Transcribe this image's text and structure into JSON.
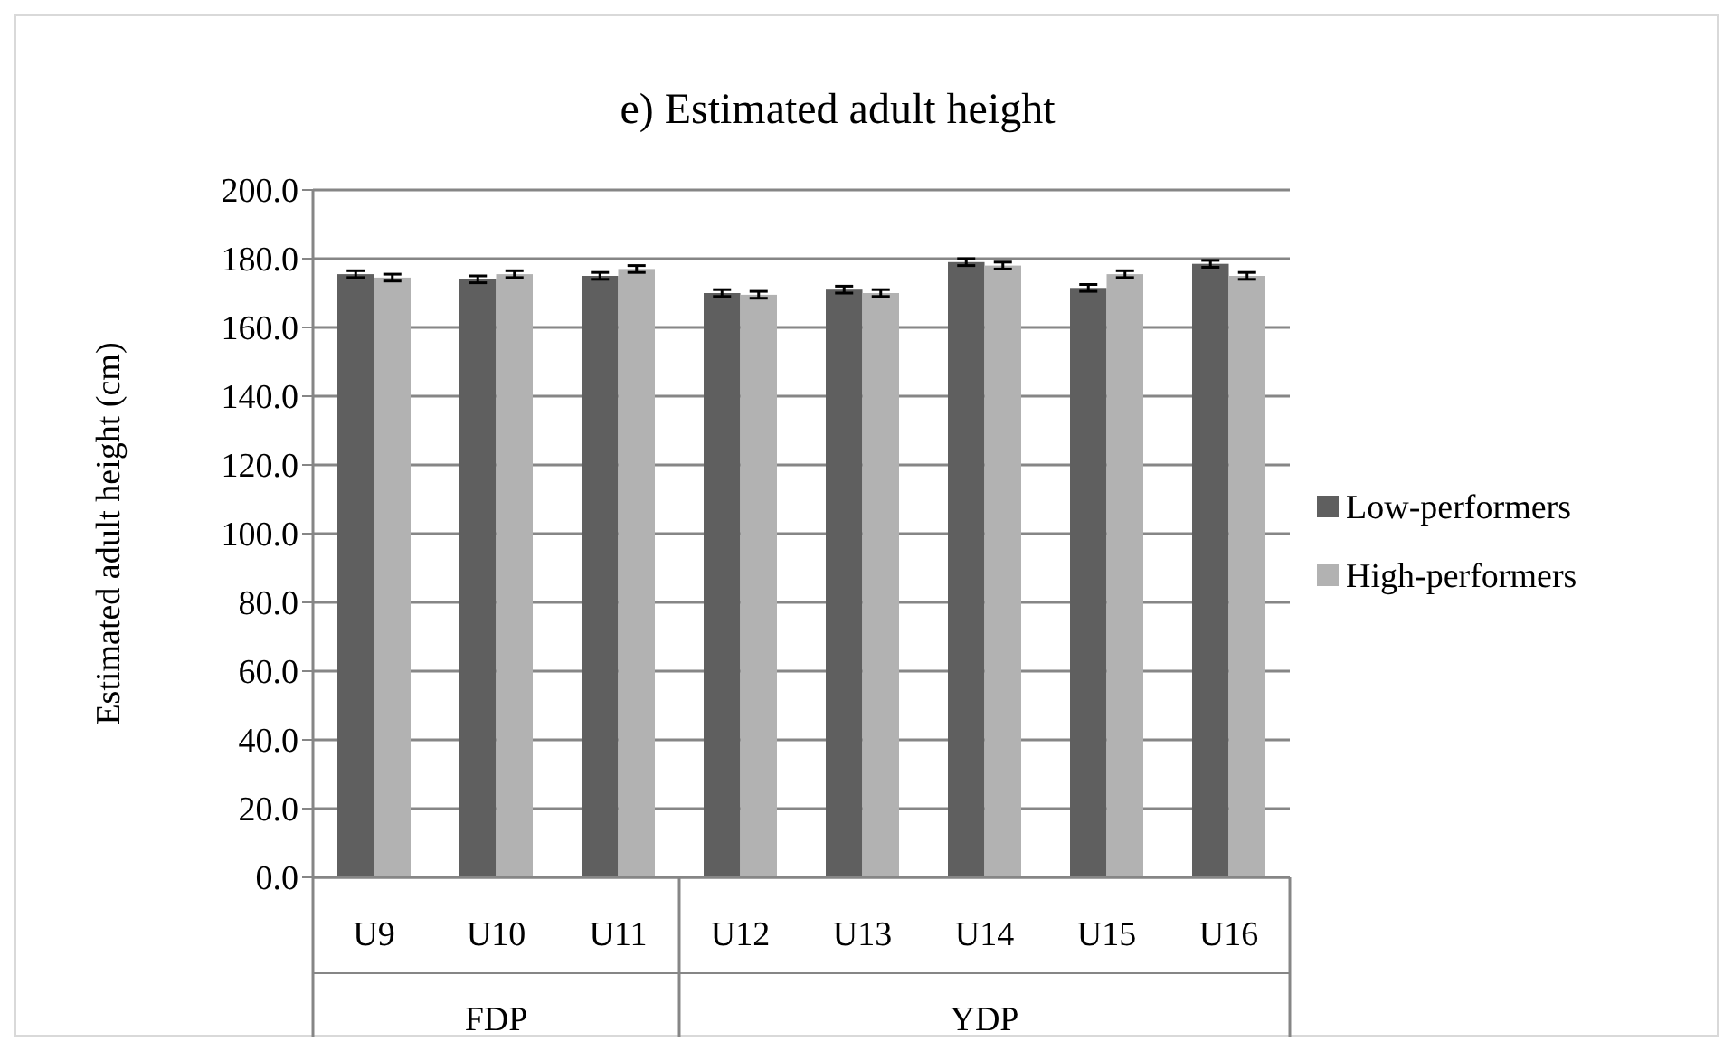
{
  "chart_data": {
    "type": "bar",
    "title": "e) Estimated adult height",
    "ylabel": "Estimated adult height (cm)",
    "categories": [
      "U9",
      "U10",
      "U11",
      "U12",
      "U13",
      "U14",
      "U15",
      "U16"
    ],
    "series": [
      {
        "name": "Low-performers",
        "color": "#5f5f5f",
        "values": [
          175.5,
          174,
          175,
          170,
          171,
          179,
          171.5,
          178.5
        ],
        "errors": [
          1,
          1,
          1,
          1,
          1,
          1,
          1,
          1
        ]
      },
      {
        "name": "High-performers",
        "color": "#b2b2b2",
        "values": [
          174.5,
          175.5,
          177,
          169.5,
          170,
          178,
          175.5,
          175
        ],
        "errors": [
          1,
          1,
          1,
          1,
          1,
          1,
          1,
          1
        ]
      }
    ],
    "ylim": [
      0,
      200
    ],
    "yticks": [
      {
        "value": 0,
        "label": "0.0"
      },
      {
        "value": 20,
        "label": "20.0"
      },
      {
        "value": 40,
        "label": "40.0"
      },
      {
        "value": 60,
        "label": "60.0"
      },
      {
        "value": 80,
        "label": "80.0"
      },
      {
        "value": 100,
        "label": "100.0"
      },
      {
        "value": 120,
        "label": "120.0"
      },
      {
        "value": 140,
        "label": "140.0"
      },
      {
        "value": 160,
        "label": "160.0"
      },
      {
        "value": 180,
        "label": "180.0"
      },
      {
        "value": 200,
        "label": "200.0"
      }
    ],
    "grid": "y",
    "legend": "right",
    "annotations": [
      "FDP",
      "YDP"
    ]
  }
}
